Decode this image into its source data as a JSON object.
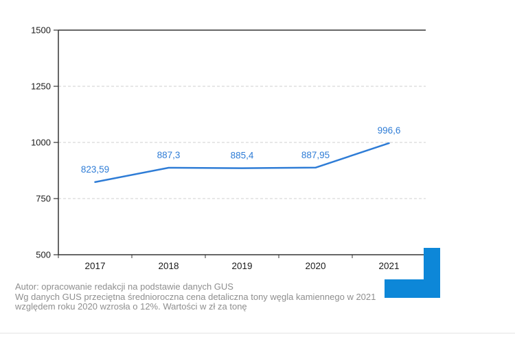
{
  "chart_data": {
    "type": "line",
    "categories": [
      "2017",
      "2018",
      "2019",
      "2020",
      "2021"
    ],
    "values": [
      823.59,
      887.3,
      885.4,
      887.95,
      996.6
    ],
    "point_labels": [
      "823,59",
      "887,3",
      "885,4",
      "887,95",
      "996,6"
    ],
    "yticks": [
      500,
      750,
      1000,
      1250,
      1500
    ],
    "ytick_labels": [
      "500",
      "750",
      "1000",
      "1250",
      "1500"
    ],
    "ylim": [
      500,
      1500
    ],
    "grid": true,
    "legend": "none",
    "title": "",
    "xlabel": "",
    "ylabel": "",
    "line_color": "#2e7cd6",
    "label_color": "#2e7cd6",
    "axis_color": "#333333",
    "grid_color": "#cfcfcf",
    "tick_label_color": "#1a1a1a"
  },
  "footer": {
    "source_line": "Autor: opracowanie redakcji na podstawie danych GUS",
    "description": "Wg danych GUS przeciętna średnioroczna cena detaliczna tony węgla kamiennego w 2021 względem roku 2020 wzrosła o 12%. Wartości w zł za tonę"
  },
  "branding": {
    "logo_color": "#0d87d8"
  }
}
